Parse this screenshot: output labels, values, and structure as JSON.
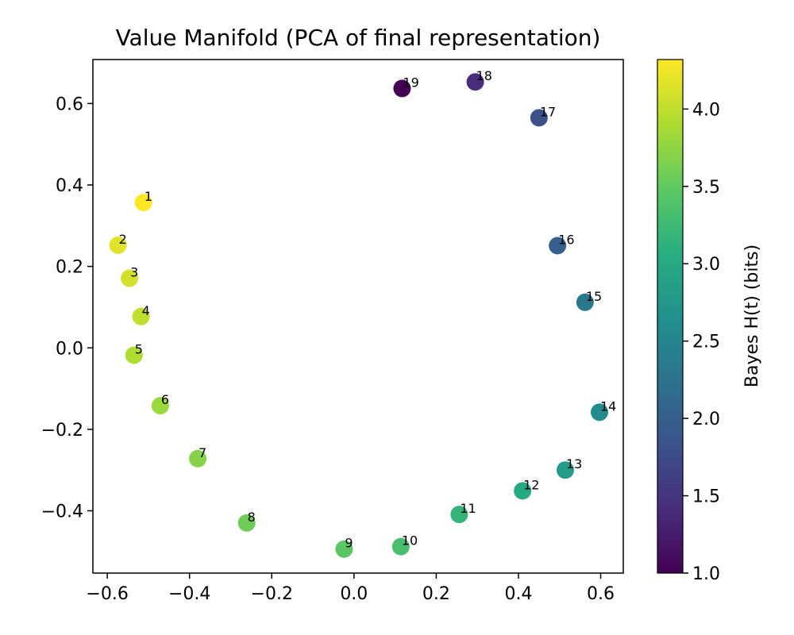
{
  "chart_data": {
    "type": "scatter",
    "title": "Value Manifold (PCA of final representation)",
    "xlabel": "",
    "ylabel": "",
    "xlim": [
      -0.635,
      0.655
    ],
    "ylim": [
      -0.553,
      0.708
    ],
    "xticks": [
      -0.6,
      -0.4,
      -0.2,
      0.0,
      0.2,
      0.4,
      0.6
    ],
    "xtick_labels": [
      "−0.6",
      "−0.4",
      "−0.2",
      "0.0",
      "0.2",
      "0.4",
      "0.6"
    ],
    "yticks": [
      -0.4,
      -0.2,
      0.0,
      0.2,
      0.4,
      0.6
    ],
    "ytick_labels": [
      "−0.4",
      "−0.2",
      "0.0",
      "0.2",
      "0.4",
      "0.6"
    ],
    "colorbar": {
      "label": "Bayes H(t) (bits)",
      "colormap": "viridis",
      "range": [
        1.0,
        4.32
      ],
      "ticks": [
        1.0,
        1.5,
        2.0,
        2.5,
        3.0,
        3.5,
        4.0
      ],
      "tick_labels": [
        "1.0",
        "1.5",
        "2.0",
        "2.5",
        "3.0",
        "3.5",
        "4.0"
      ]
    },
    "points": [
      {
        "label": "1",
        "x": -0.512,
        "y": 0.357,
        "c": 4.32
      },
      {
        "label": "2",
        "x": -0.574,
        "y": 0.252,
        "c": 4.17
      },
      {
        "label": "3",
        "x": -0.546,
        "y": 0.171,
        "c": 4.09
      },
      {
        "label": "4",
        "x": -0.518,
        "y": 0.077,
        "c": 4.0
      },
      {
        "label": "5",
        "x": -0.535,
        "y": -0.018,
        "c": 3.91
      },
      {
        "label": "6",
        "x": -0.471,
        "y": -0.142,
        "c": 3.81
      },
      {
        "label": "7",
        "x": -0.38,
        "y": -0.272,
        "c": 3.7
      },
      {
        "label": "8",
        "x": -0.261,
        "y": -0.43,
        "c": 3.58
      },
      {
        "label": "9",
        "x": -0.024,
        "y": -0.494,
        "c": 3.46
      },
      {
        "label": "10",
        "x": 0.114,
        "y": -0.488,
        "c": 3.32
      },
      {
        "label": "11",
        "x": 0.256,
        "y": -0.409,
        "c": 3.17
      },
      {
        "label": "12",
        "x": 0.41,
        "y": -0.351,
        "c": 3.0
      },
      {
        "label": "13",
        "x": 0.514,
        "y": -0.3,
        "c": 2.81
      },
      {
        "label": "14",
        "x": 0.597,
        "y": -0.158,
        "c": 2.58
      },
      {
        "label": "15",
        "x": 0.562,
        "y": 0.112,
        "c": 2.32
      },
      {
        "label": "16",
        "x": 0.495,
        "y": 0.251,
        "c": 2.0
      },
      {
        "label": "17",
        "x": 0.45,
        "y": 0.565,
        "c": 1.81
      },
      {
        "label": "18",
        "x": 0.295,
        "y": 0.653,
        "c": 1.42
      },
      {
        "label": "19",
        "x": 0.117,
        "y": 0.637,
        "c": 1.0
      }
    ]
  }
}
